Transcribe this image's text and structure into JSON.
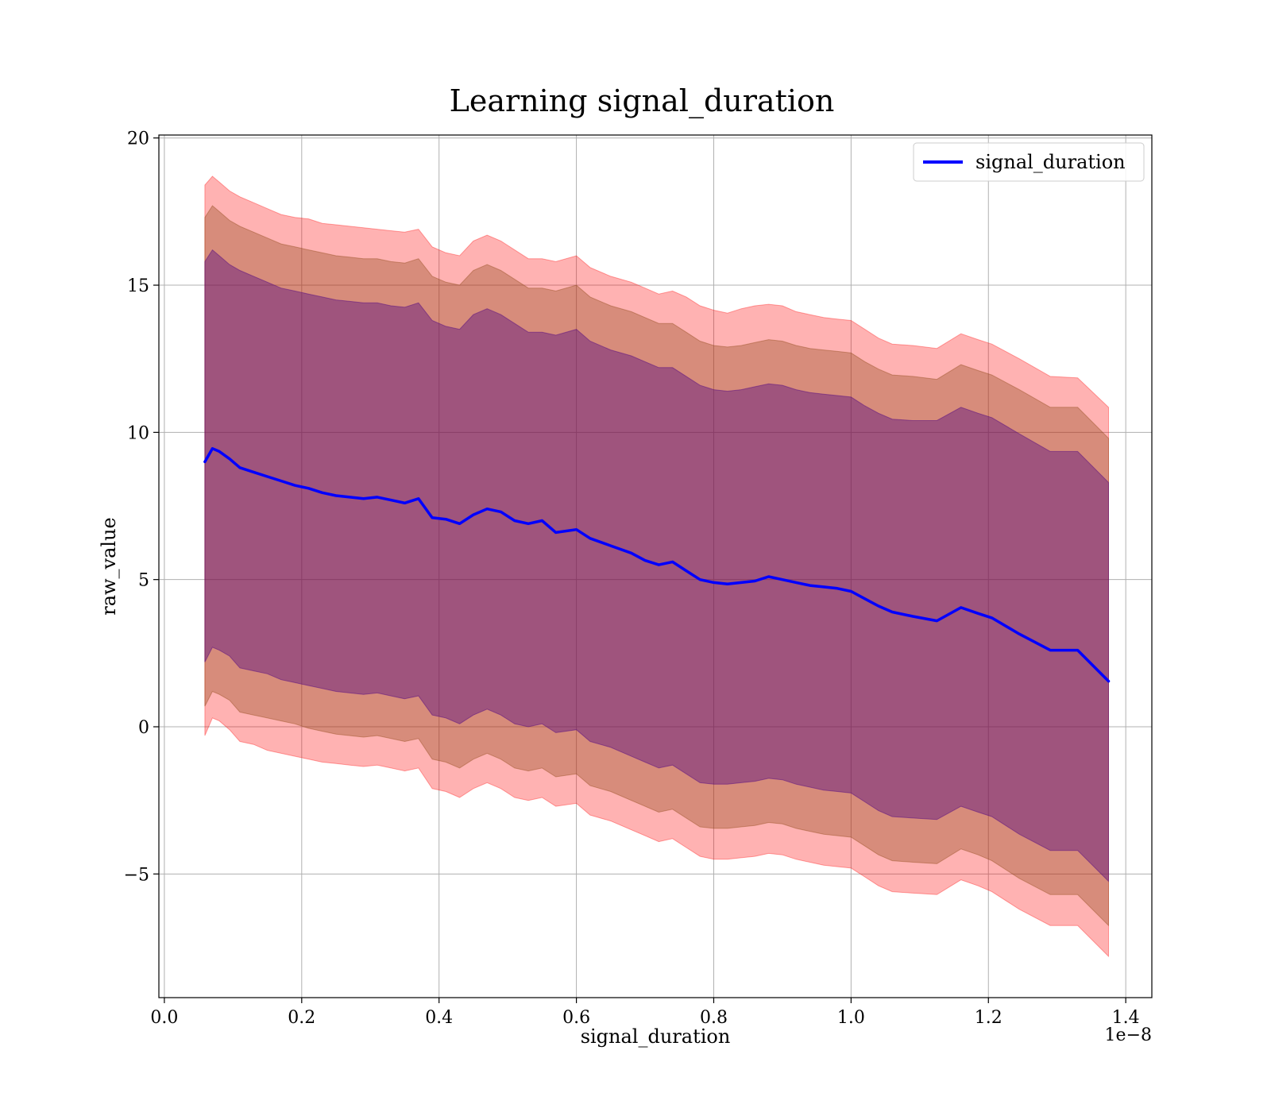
{
  "chart_data": {
    "type": "line",
    "title": "Learning signal_duration",
    "xlabel": "signal_duration",
    "ylabel": "raw_value",
    "x_offset_label": "1e−8",
    "xlim": [
      -0.008,
      1.438
    ],
    "ylim": [
      -9.2,
      20.1
    ],
    "x_ticks": [
      0.0,
      0.2,
      0.4,
      0.6,
      0.8,
      1.0,
      1.2,
      1.4
    ],
    "x_tick_labels": [
      "0.0",
      "0.2",
      "0.4",
      "0.6",
      "0.8",
      "1.0",
      "1.2",
      "1.4"
    ],
    "y_ticks": [
      -5,
      0,
      5,
      10,
      15,
      20
    ],
    "y_tick_labels": [
      "−5",
      "0",
      "5",
      "10",
      "15",
      "20"
    ],
    "grid": true,
    "legend_position": "top-right",
    "colors": {
      "line": "#0000ff",
      "band_outer": "#ff0000",
      "band_middle": "#8b4513",
      "band_inner": "#4b0082"
    },
    "series": [
      {
        "name": "signal_duration",
        "x": [
          0.059,
          0.07,
          0.08,
          0.095,
          0.11,
          0.13,
          0.15,
          0.17,
          0.19,
          0.21,
          0.23,
          0.25,
          0.27,
          0.29,
          0.31,
          0.33,
          0.35,
          0.37,
          0.39,
          0.41,
          0.43,
          0.45,
          0.47,
          0.49,
          0.51,
          0.53,
          0.55,
          0.57,
          0.6,
          0.62,
          0.65,
          0.68,
          0.7,
          0.72,
          0.74,
          0.76,
          0.78,
          0.8,
          0.82,
          0.84,
          0.86,
          0.88,
          0.9,
          0.92,
          0.94,
          0.96,
          0.98,
          1.0,
          1.02,
          1.04,
          1.06,
          1.09,
          1.125,
          1.16,
          1.185,
          1.205,
          1.245,
          1.29,
          1.33,
          1.375
        ],
        "y": [
          9.0,
          9.45,
          9.35,
          9.1,
          8.8,
          8.65,
          8.5,
          8.35,
          8.2,
          8.1,
          7.95,
          7.85,
          7.8,
          7.75,
          7.8,
          7.7,
          7.6,
          7.75,
          7.1,
          7.05,
          6.9,
          7.2,
          7.4,
          7.3,
          7.0,
          6.9,
          7.0,
          6.6,
          6.7,
          6.4,
          6.15,
          5.9,
          5.65,
          5.5,
          5.6,
          5.3,
          5.0,
          4.9,
          4.85,
          4.9,
          4.95,
          5.1,
          5.0,
          4.9,
          4.8,
          4.75,
          4.7,
          4.6,
          4.35,
          4.1,
          3.9,
          3.75,
          3.6,
          4.05,
          3.85,
          3.7,
          3.15,
          2.6,
          2.6,
          1.55
        ]
      }
    ],
    "bands": [
      {
        "level": "outer",
        "upper": [
          18.4,
          18.7,
          18.5,
          18.2,
          18.0,
          17.8,
          17.6,
          17.4,
          17.3,
          17.25,
          17.1,
          17.05,
          17.0,
          16.95,
          16.9,
          16.85,
          16.8,
          16.9,
          16.3,
          16.1,
          16.0,
          16.5,
          16.7,
          16.5,
          16.2,
          15.9,
          15.9,
          15.8,
          16.0,
          15.6,
          15.3,
          15.1,
          14.9,
          14.7,
          14.8,
          14.6,
          14.3,
          14.15,
          14.05,
          14.2,
          14.3,
          14.35,
          14.3,
          14.1,
          14.0,
          13.9,
          13.85,
          13.8,
          13.5,
          13.2,
          13.0,
          12.95,
          12.85,
          13.35,
          13.15,
          13.0,
          12.5,
          11.9,
          11.85,
          10.85
        ],
        "lower": [
          -0.3,
          0.3,
          0.2,
          -0.1,
          -0.5,
          -0.6,
          -0.8,
          -0.9,
          -1.0,
          -1.1,
          -1.2,
          -1.25,
          -1.3,
          -1.35,
          -1.3,
          -1.4,
          -1.5,
          -1.4,
          -2.1,
          -2.2,
          -2.4,
          -2.1,
          -1.9,
          -2.1,
          -2.4,
          -2.5,
          -2.4,
          -2.7,
          -2.6,
          -3.0,
          -3.2,
          -3.5,
          -3.7,
          -3.9,
          -3.8,
          -4.1,
          -4.4,
          -4.5,
          -4.5,
          -4.45,
          -4.4,
          -4.3,
          -4.35,
          -4.5,
          -4.6,
          -4.7,
          -4.75,
          -4.8,
          -5.1,
          -5.4,
          -5.6,
          -5.65,
          -5.7,
          -5.2,
          -5.4,
          -5.6,
          -6.2,
          -6.75,
          -6.75,
          -7.8
        ]
      },
      {
        "level": "middle",
        "upper": [
          17.3,
          17.7,
          17.5,
          17.2,
          17.0,
          16.8,
          16.6,
          16.4,
          16.3,
          16.2,
          16.1,
          16.0,
          15.95,
          15.9,
          15.9,
          15.8,
          15.75,
          15.9,
          15.3,
          15.1,
          15.0,
          15.5,
          15.7,
          15.5,
          15.2,
          14.9,
          14.9,
          14.8,
          15.0,
          14.6,
          14.3,
          14.1,
          13.9,
          13.7,
          13.7,
          13.4,
          13.1,
          12.95,
          12.9,
          12.95,
          13.05,
          13.15,
          13.1,
          12.95,
          12.85,
          12.8,
          12.75,
          12.7,
          12.4,
          12.15,
          11.95,
          11.9,
          11.8,
          12.3,
          12.1,
          11.95,
          11.45,
          10.85,
          10.85,
          9.8
        ]
      },
      {
        "level": "middle",
        "lower": [
          0.7,
          1.2,
          1.1,
          0.9,
          0.5,
          0.4,
          0.3,
          0.2,
          0.1,
          -0.05,
          -0.15,
          -0.25,
          -0.3,
          -0.35,
          -0.3,
          -0.4,
          -0.5,
          -0.4,
          -1.1,
          -1.2,
          -1.4,
          -1.1,
          -0.9,
          -1.1,
          -1.4,
          -1.5,
          -1.4,
          -1.7,
          -1.6,
          -2.0,
          -2.2,
          -2.5,
          -2.7,
          -2.9,
          -2.8,
          -3.1,
          -3.4,
          -3.45,
          -3.45,
          -3.4,
          -3.35,
          -3.25,
          -3.3,
          -3.45,
          -3.55,
          -3.65,
          -3.7,
          -3.75,
          -4.05,
          -4.35,
          -4.55,
          -4.6,
          -4.65,
          -4.15,
          -4.35,
          -4.55,
          -5.15,
          -5.7,
          -5.7,
          -6.75
        ]
      },
      {
        "level": "inner",
        "upper": [
          15.8,
          16.2,
          16.0,
          15.7,
          15.5,
          15.3,
          15.1,
          14.9,
          14.8,
          14.7,
          14.6,
          14.5,
          14.45,
          14.4,
          14.4,
          14.3,
          14.25,
          14.4,
          13.8,
          13.6,
          13.5,
          14.0,
          14.2,
          14.0,
          13.7,
          13.4,
          13.4,
          13.3,
          13.5,
          13.1,
          12.8,
          12.6,
          12.4,
          12.2,
          12.2,
          11.9,
          11.6,
          11.45,
          11.4,
          11.45,
          11.55,
          11.65,
          11.6,
          11.45,
          11.35,
          11.3,
          11.25,
          11.2,
          10.9,
          10.65,
          10.45,
          10.4,
          10.4,
          10.85,
          10.65,
          10.5,
          9.95,
          9.35,
          9.35,
          8.3
        ]
      },
      {
        "level": "inner",
        "lower": [
          2.2,
          2.7,
          2.6,
          2.4,
          2.0,
          1.9,
          1.8,
          1.6,
          1.5,
          1.4,
          1.3,
          1.2,
          1.15,
          1.1,
          1.15,
          1.05,
          0.95,
          1.05,
          0.4,
          0.3,
          0.1,
          0.4,
          0.6,
          0.4,
          0.1,
          0.0,
          0.1,
          -0.2,
          -0.1,
          -0.5,
          -0.7,
          -1.0,
          -1.2,
          -1.4,
          -1.3,
          -1.6,
          -1.9,
          -1.95,
          -1.95,
          -1.9,
          -1.85,
          -1.75,
          -1.8,
          -1.95,
          -2.05,
          -2.15,
          -2.2,
          -2.25,
          -2.55,
          -2.85,
          -3.05,
          -3.1,
          -3.15,
          -2.7,
          -2.9,
          -3.05,
          -3.65,
          -4.2,
          -4.2,
          -5.25
        ]
      }
    ]
  }
}
